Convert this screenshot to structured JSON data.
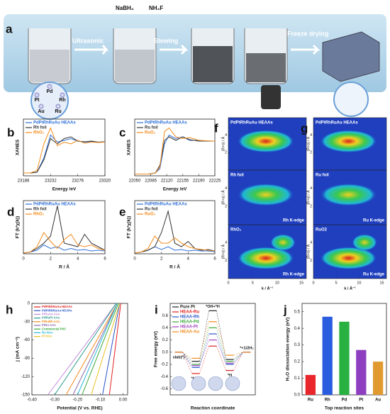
{
  "schematic": {
    "panel": "a",
    "reagents": [
      "NaBH₄",
      "NH₄F"
    ],
    "steps": [
      "Ultrasonic",
      "Stewing",
      "Freeze drying"
    ],
    "metals": [
      "Pd",
      "Pt",
      "Rh",
      "Au",
      "Ru"
    ]
  },
  "maps": {
    "panels": [
      {
        "panel": "f",
        "cells": [
          [
            "PdPtRhRuAu HEAAs",
            null
          ],
          [
            "Rh foil",
            "Rh K-edge"
          ],
          [
            "RhO₂",
            "Rh K-edge"
          ]
        ],
        "edge": "Rh K-edge"
      },
      {
        "panel": "g",
        "cells": [
          [
            "PdPtRhRuAu HEAAs",
            null
          ],
          [
            "Ru foil",
            "Ru K-edge"
          ],
          [
            "RuO2",
            "Ru K-edge"
          ]
        ],
        "edge": "Ru K-edge"
      }
    ],
    "ylabel": "(R+α) / Å",
    "xlabel": "k / Å⁻¹",
    "xticks": [
      0,
      5,
      10,
      15
    ],
    "yticks": [
      2,
      4
    ]
  },
  "chart_data": [
    {
      "type": "line",
      "panel": "b",
      "xlabel": "Energy /eV",
      "ylabel": "XANES",
      "x": [
        23188,
        23199,
        23210,
        23221,
        23232,
        23243,
        23254,
        23265,
        23276,
        23287,
        23298,
        23309,
        23320
      ],
      "xlim": [
        23188,
        23320
      ],
      "xticks": [
        23188,
        23232,
        23276,
        23320
      ],
      "ylim": [
        0,
        1.6
      ],
      "series": [
        {
          "name": "PdPtRhRuAu HEAAs",
          "color": "#2f6fd6",
          "values": [
            0.08,
            0.08,
            0.1,
            0.5,
            1.15,
            0.95,
            1.0,
            1.05,
            0.98,
            0.95,
            0.97,
            0.95,
            0.96
          ]
        },
        {
          "name": "Rh foil",
          "color": "#333333",
          "values": [
            0.08,
            0.08,
            0.1,
            0.45,
            1.05,
            0.9,
            1.05,
            1.1,
            0.98,
            0.96,
            0.98,
            0.95,
            0.96
          ]
        },
        {
          "name": "RhO₂",
          "color": "#f28c1c",
          "values": [
            0.08,
            0.08,
            0.15,
            0.9,
            1.35,
            0.85,
            0.95,
            0.9,
            1.0,
            0.92,
            0.95,
            0.94,
            0.95
          ]
        }
      ]
    },
    {
      "type": "line",
      "panel": "c",
      "xlabel": "Energy /eV",
      "ylabel": "XANES",
      "x": [
        22050,
        22065,
        22080,
        22095,
        22105,
        22115,
        22125,
        22140,
        22155,
        22170,
        22190,
        22205,
        22225
      ],
      "xlim": [
        22050,
        22225
      ],
      "xticks": [
        22050,
        22085,
        22120,
        22155,
        22190,
        22225
      ],
      "ylim": [
        0,
        1.6
      ],
      "series": [
        {
          "name": "PdPtRhRuAu HEAAs",
          "color": "#2f6fd6",
          "values": [
            0.05,
            0.05,
            0.05,
            0.08,
            0.2,
            0.9,
            1.15,
            1.05,
            1.1,
            1.0,
            1.0,
            0.98,
            0.98
          ]
        },
        {
          "name": "Ru foil",
          "color": "#333333",
          "values": [
            0.05,
            0.05,
            0.05,
            0.08,
            0.3,
            1.0,
            1.1,
            1.0,
            1.1,
            1.02,
            0.98,
            0.98,
            0.98
          ]
        },
        {
          "name": "RuO₂",
          "color": "#f28c1c",
          "values": [
            0.05,
            0.05,
            0.05,
            0.08,
            0.25,
            1.25,
            1.35,
            1.1,
            1.05,
            1.08,
            1.0,
            0.99,
            0.98
          ]
        }
      ]
    },
    {
      "type": "line",
      "panel": "d",
      "xlabel": "R / Å",
      "ylabel": "FT (k³χ(k))",
      "x": [
        0,
        0.5,
        1,
        1.5,
        2,
        2.5,
        3,
        3.5,
        4,
        4.5,
        5,
        5.5,
        6
      ],
      "xlim": [
        0,
        6
      ],
      "xticks": [
        0,
        2,
        4,
        6
      ],
      "ylim": [
        0,
        1.5
      ],
      "series": [
        {
          "name": "PdPtRhRuAu HEAAs",
          "color": "#2f6fd6",
          "values": [
            0.02,
            0.05,
            0.1,
            0.25,
            0.15,
            0.2,
            0.1,
            0.15,
            0.1,
            0.12,
            0.08,
            0.1,
            0.08
          ]
        },
        {
          "name": "Rh foil",
          "color": "#333333",
          "values": [
            0.02,
            0.05,
            0.15,
            0.3,
            0.5,
            1.35,
            0.3,
            0.25,
            0.2,
            0.55,
            0.3,
            0.2,
            0.1
          ]
        },
        {
          "name": "RhO₂",
          "color": "#f28c1c",
          "values": [
            0.02,
            0.05,
            0.2,
            0.6,
            0.35,
            0.15,
            0.4,
            0.55,
            0.25,
            0.2,
            0.25,
            0.15,
            0.1
          ]
        }
      ]
    },
    {
      "type": "line",
      "panel": "e",
      "xlabel": "R / Å",
      "ylabel": "FT (k²χ(k))",
      "x": [
        0,
        0.5,
        1,
        1.5,
        2,
        2.5,
        3,
        3.5,
        4,
        4.5,
        5,
        5.5,
        6
      ],
      "xlim": [
        0,
        6
      ],
      "xticks": [
        0,
        2,
        4,
        6
      ],
      "ylim": [
        0,
        1.5
      ],
      "series": [
        {
          "name": "PdPtRhRuAu HEAAs",
          "color": "#2f6fd6",
          "values": [
            0.02,
            0.05,
            0.1,
            0.2,
            0.12,
            0.2,
            0.1,
            0.12,
            0.08,
            0.1,
            0.08,
            0.08,
            0.06
          ]
        },
        {
          "name": "Ru foil",
          "color": "#333333",
          "values": [
            0.02,
            0.05,
            0.1,
            0.2,
            0.6,
            1.2,
            0.3,
            0.2,
            0.35,
            0.15,
            0.1,
            0.12,
            0.08
          ]
        },
        {
          "name": "RuO₂",
          "color": "#f28c1c",
          "values": [
            0.02,
            0.05,
            0.15,
            0.5,
            0.3,
            0.3,
            0.45,
            0.3,
            0.2,
            0.15,
            0.12,
            0.1,
            0.08
          ]
        }
      ]
    },
    {
      "type": "line",
      "panel": "h",
      "xlabel": "Potential (V vs. RHE)",
      "ylabel": "j (mA cm⁻²)",
      "xlim": [
        -0.4,
        0.02
      ],
      "xticks": [
        {
          "value": -0.4,
          "label": "-0.40"
        },
        {
          "value": -0.3,
          "label": "-0.30"
        },
        {
          "value": -0.2,
          "label": "-0.20"
        },
        {
          "value": -0.1,
          "label": "-0.10"
        },
        {
          "value": 0,
          "label": "0.00"
        }
      ],
      "ylim": [
        -150,
        0
      ],
      "yticks": [
        0,
        -30,
        -60,
        -90,
        -120,
        -150
      ],
      "series": [
        {
          "name": "PdPtRhRuAu HEAAs",
          "color": "#e02020",
          "x": [
            -0.01,
            -0.06
          ],
          "values": [
            0,
            -150
          ]
        },
        {
          "name": "PdPtRhRuAu HEAPs",
          "color": "#2a55c8",
          "x": [
            -0.015,
            -0.09
          ],
          "values": [
            0,
            -150
          ]
        },
        {
          "name": "PtRuAu AAs",
          "color": "#c08ad8",
          "x": [
            -0.03,
            -0.33
          ],
          "values": [
            0,
            -150
          ]
        },
        {
          "name": "PdRuPt AAs",
          "color": "#2a9c8c",
          "x": [
            -0.03,
            -0.3
          ],
          "values": [
            0,
            -150
          ]
        },
        {
          "name": "PtRuRh AAs",
          "color": "#f08a1c",
          "x": [
            -0.025,
            -0.25
          ],
          "values": [
            0,
            -150
          ]
        },
        {
          "name": "PtRu AAs",
          "color": "#8a6ba8",
          "x": [
            -0.025,
            -0.22
          ],
          "values": [
            0,
            -150
          ]
        },
        {
          "name": "Commercial Pt/C",
          "color": "#3aa83a",
          "x": [
            -0.02,
            -0.18
          ],
          "values": [
            0,
            -150
          ]
        },
        {
          "name": "Ru NAs",
          "color": "#28b8d8",
          "x": [
            -0.025,
            -0.2
          ],
          "values": [
            0,
            -150
          ]
        },
        {
          "name": "Pt NAs",
          "color": "#e8c020",
          "x": [
            -0.015,
            -0.14
          ],
          "values": [
            0,
            -150
          ]
        }
      ]
    },
    {
      "type": "energy",
      "panel": "i",
      "xlabel": "Reaction coordinate",
      "ylabel": "Free energy (eV)",
      "categories": [
        "slab(*)",
        "*H₂O",
        "*OH+*H",
        "*H",
        "*+1/2H₂"
      ],
      "ylim": [
        -0.7,
        0.8
      ],
      "yticks": [
        0.6,
        0.4,
        0.2,
        {
          "value": 0,
          "label": "0.0"
        },
        -0.2,
        -0.4,
        -0.6
      ],
      "series": [
        {
          "name": "Pure Pt",
          "color": "#222222",
          "values": [
            0,
            -0.15,
            0.68,
            -0.12,
            0
          ]
        },
        {
          "name": "HEAA-Ru",
          "color": "#e02020",
          "values": [
            0,
            -0.35,
            0.1,
            -0.3,
            0
          ]
        },
        {
          "name": "HEAA-Rh",
          "color": "#2a55c8",
          "values": [
            0,
            -0.25,
            0.3,
            -0.2,
            0
          ]
        },
        {
          "name": "HEAA-Pd",
          "color": "#3aa83a",
          "values": [
            0,
            -0.2,
            0.4,
            -0.15,
            0
          ]
        },
        {
          "name": "HEAA-Pt",
          "color": "#a040c0",
          "values": [
            0,
            -0.22,
            0.2,
            -0.18,
            0
          ]
        },
        {
          "name": "HEAA-Au",
          "color": "#f08a1c",
          "values": [
            0,
            -0.1,
            0.5,
            -0.05,
            0
          ]
        }
      ]
    },
    {
      "type": "bar",
      "panel": "j",
      "xlabel": "Top reaction sites",
      "ylabel": "H₂O dissociation energy (eV)",
      "categories": [
        "Ru",
        "Rh",
        "Pd",
        "Pt",
        "Au"
      ],
      "values": [
        0.12,
        0.47,
        0.44,
        0.27,
        0.2
      ],
      "colors": [
        "#e8262c",
        "#2a5ce0",
        "#28b040",
        "#8e3fc0",
        "#e09a30"
      ],
      "ylim": [
        0,
        0.55
      ],
      "yticks": [
        {
          "value": 0,
          "label": "0.0"
        },
        {
          "value": 0.1,
          "label": "0.1"
        },
        {
          "value": 0.2,
          "label": "0.2"
        },
        {
          "value": 0.3,
          "label": "0.3"
        },
        {
          "value": 0.4,
          "label": "0.4"
        },
        {
          "value": 0.5,
          "label": "0.5"
        }
      ]
    }
  ]
}
